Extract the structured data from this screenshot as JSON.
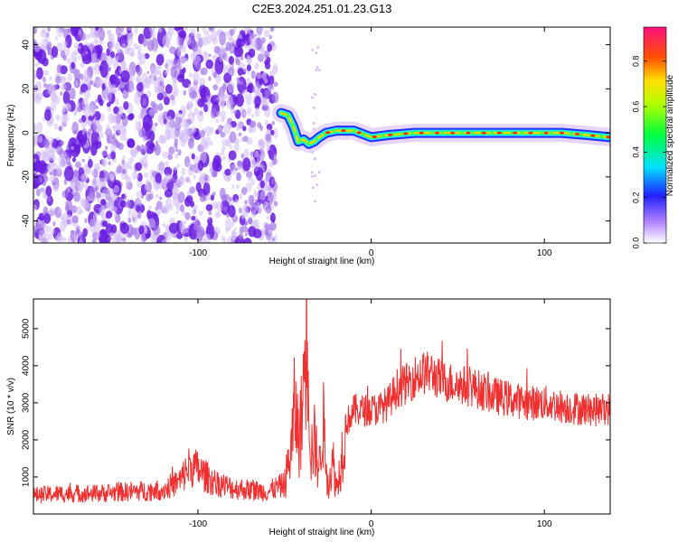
{
  "title": "C2E3.2024.251.01.23.G13",
  "colors": {
    "snr_line": "#f03030",
    "noise": "#8a2be2",
    "axis": "#000000",
    "background": "#ffffff"
  },
  "chart_data": [
    {
      "type": "heatmap",
      "xlabel": "Height of straight line (km)",
      "ylabel": "Frequency (Hz)",
      "xlim": [
        -195,
        138
      ],
      "ylim": [
        -50,
        48
      ],
      "xticks": [
        -100,
        0,
        100
      ],
      "yticks": [
        -40,
        -20,
        0,
        20,
        40
      ],
      "colorbar": {
        "label": "Normalized spectral amplitude",
        "range": [
          0,
          0.95
        ],
        "ticks": [
          "0.0",
          "0.2",
          "0.4",
          "0.6",
          "0.8"
        ]
      },
      "noise_region_x": [
        -195,
        -55
      ],
      "tone_track": [
        {
          "x": -52,
          "y": 9
        },
        {
          "x": -48,
          "y": 8
        },
        {
          "x": -45,
          "y": 3
        },
        {
          "x": -42,
          "y": -4
        },
        {
          "x": -39,
          "y": -3
        },
        {
          "x": -36,
          "y": -5
        },
        {
          "x": -33,
          "y": -4
        },
        {
          "x": -30,
          "y": -2
        },
        {
          "x": -26,
          "y": 0
        },
        {
          "x": -20,
          "y": 1
        },
        {
          "x": -10,
          "y": 1
        },
        {
          "x": 0,
          "y": -2
        },
        {
          "x": 10,
          "y": -1
        },
        {
          "x": 25,
          "y": 0
        },
        {
          "x": 50,
          "y": 0
        },
        {
          "x": 80,
          "y": 0
        },
        {
          "x": 110,
          "y": 0
        },
        {
          "x": 125,
          "y": -1
        },
        {
          "x": 138,
          "y": -2
        }
      ]
    },
    {
      "type": "line",
      "xlabel": "Height of straight line (km)",
      "ylabel": "SNR (10 * v/v)",
      "xlim": [
        -195,
        138
      ],
      "ylim": [
        0,
        5800
      ],
      "xticks": [
        -100,
        0,
        100
      ],
      "yticks": [
        1000,
        2000,
        3000,
        4000,
        5000
      ],
      "series": [
        {
          "x": [
            -195,
            -180,
            -160,
            -140,
            -120,
            -110,
            -105,
            -100,
            -95,
            -90,
            -80,
            -70,
            -60,
            -55,
            -50,
            -46,
            -44,
            -42,
            -40,
            -38,
            -37,
            -36,
            -35,
            -33,
            -30,
            -28,
            -25,
            -22,
            -20,
            -18,
            -15,
            -10,
            -5,
            0,
            5,
            10,
            15,
            20,
            25,
            30,
            35,
            40,
            50,
            60,
            70,
            80,
            90,
            100,
            110,
            120,
            130,
            138
          ],
          "y": [
            500,
            550,
            550,
            600,
            650,
            900,
            1300,
            1200,
            1000,
            850,
            700,
            650,
            600,
            700,
            800,
            1800,
            3000,
            2000,
            2600,
            4600,
            5600,
            3800,
            1600,
            2000,
            1200,
            2600,
            800,
            1400,
            700,
            1200,
            2400,
            2800,
            2800,
            2800,
            2850,
            3000,
            3400,
            3500,
            3700,
            3800,
            3800,
            3600,
            3500,
            3400,
            3200,
            3100,
            3000,
            3000,
            2900,
            2850,
            2800,
            2850
          ]
        }
      ]
    }
  ]
}
